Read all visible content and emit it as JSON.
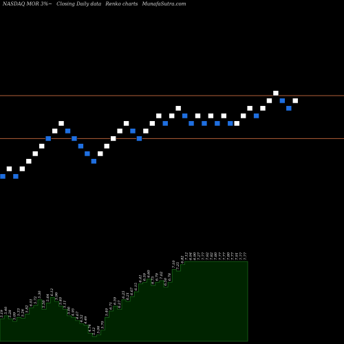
{
  "header": {
    "symbol": "NASDAQ MOR 3%~",
    "subtitle": "Closing Daily data",
    "chart_kind": "Renko charts",
    "site": "MunafaSutra.com"
  },
  "colors": {
    "background": "#000000",
    "up_brick": "#ffffff",
    "down_brick": "#1f6fe0",
    "level_line": "#b5603a",
    "volume_fill": "#002400",
    "volume_edge": "#1a6b1a",
    "text": "#d8d8d8"
  },
  "chart_data": [
    {
      "type": "line",
      "title": "",
      "price_range": [
        7.9,
        13.9
      ],
      "brick_size": 0.3,
      "horizontal_levels": [
        11.2,
        9.5
      ],
      "bricks": [
        {
          "x": 0,
          "y": 8.0,
          "dir": "down"
        },
        {
          "x": 1,
          "y": 8.3,
          "dir": "up"
        },
        {
          "x": 2,
          "y": 8.0,
          "dir": "down"
        },
        {
          "x": 3,
          "y": 8.3,
          "dir": "up"
        },
        {
          "x": 4,
          "y": 8.6,
          "dir": "up"
        },
        {
          "x": 5,
          "y": 8.9,
          "dir": "up"
        },
        {
          "x": 6,
          "y": 9.2,
          "dir": "up"
        },
        {
          "x": 7,
          "y": 9.5,
          "dir": "down"
        },
        {
          "x": 8,
          "y": 9.8,
          "dir": "up"
        },
        {
          "x": 9,
          "y": 10.1,
          "dir": "up"
        },
        {
          "x": 10,
          "y": 9.8,
          "dir": "down"
        },
        {
          "x": 11,
          "y": 9.5,
          "dir": "down"
        },
        {
          "x": 12,
          "y": 9.2,
          "dir": "down"
        },
        {
          "x": 13,
          "y": 8.9,
          "dir": "down"
        },
        {
          "x": 14,
          "y": 8.6,
          "dir": "down"
        },
        {
          "x": 15,
          "y": 8.9,
          "dir": "up"
        },
        {
          "x": 16,
          "y": 9.2,
          "dir": "up"
        },
        {
          "x": 17,
          "y": 9.5,
          "dir": "up"
        },
        {
          "x": 18,
          "y": 9.8,
          "dir": "up"
        },
        {
          "x": 19,
          "y": 10.1,
          "dir": "up"
        },
        {
          "x": 20,
          "y": 9.8,
          "dir": "down"
        },
        {
          "x": 21,
          "y": 9.5,
          "dir": "down"
        },
        {
          "x": 22,
          "y": 9.8,
          "dir": "up"
        },
        {
          "x": 23,
          "y": 10.1,
          "dir": "up"
        },
        {
          "x": 24,
          "y": 10.4,
          "dir": "up"
        },
        {
          "x": 25,
          "y": 10.1,
          "dir": "down"
        },
        {
          "x": 26,
          "y": 10.4,
          "dir": "up"
        },
        {
          "x": 27,
          "y": 10.7,
          "dir": "up"
        },
        {
          "x": 28,
          "y": 10.4,
          "dir": "down"
        },
        {
          "x": 29,
          "y": 10.1,
          "dir": "down"
        },
        {
          "x": 30,
          "y": 10.4,
          "dir": "up"
        },
        {
          "x": 31,
          "y": 10.1,
          "dir": "down"
        },
        {
          "x": 32,
          "y": 10.4,
          "dir": "up"
        },
        {
          "x": 33,
          "y": 10.1,
          "dir": "down"
        },
        {
          "x": 34,
          "y": 10.4,
          "dir": "up"
        },
        {
          "x": 35,
          "y": 10.1,
          "dir": "down"
        },
        {
          "x": 36,
          "y": 10.1,
          "dir": "up"
        },
        {
          "x": 37,
          "y": 10.4,
          "dir": "up"
        },
        {
          "x": 38,
          "y": 10.7,
          "dir": "up"
        },
        {
          "x": 39,
          "y": 10.4,
          "dir": "down"
        },
        {
          "x": 40,
          "y": 10.7,
          "dir": "up"
        },
        {
          "x": 41,
          "y": 11.0,
          "dir": "up"
        },
        {
          "x": 42,
          "y": 11.3,
          "dir": "up"
        },
        {
          "x": 43,
          "y": 11.0,
          "dir": "down"
        },
        {
          "x": 44,
          "y": 10.7,
          "dir": "down"
        },
        {
          "x": 45,
          "y": 11.0,
          "dir": "up"
        }
      ],
      "volume_labels": [
        "5.19",
        "5.40",
        "5.28",
        "5.09",
        "5.33",
        "5.26",
        "5.82",
        "6.01",
        "5.72",
        "5.30",
        "5.50",
        "5.64",
        "6.12",
        "5.96",
        "5.40",
        "5.11",
        "5.00",
        "4.95",
        "4.67",
        "4.52",
        "4.49",
        "4.74",
        "5.12",
        "5.06",
        "5.70",
        "5.40",
        "6.71",
        "6.59",
        "6.27",
        "6.25",
        "6.21",
        "6.67",
        "6.15",
        "6.41",
        "6.59",
        "6.60",
        "6.73",
        "6.79",
        "7.02",
        "6.50",
        "6.78",
        "7.10",
        "7.25",
        "6.82",
        "7.12",
        "6.94",
        "6.90",
        "7.27",
        "7.77",
        "7.92",
        "7.82",
        "7.80",
        "7.77",
        "7.77",
        "7.80",
        "7.77",
        "7.91",
        "7.77",
        "7.77"
      ],
      "volume_levels": [
        0.28,
        0.32,
        0.28,
        0.25,
        0.3,
        0.29,
        0.34,
        0.42,
        0.45,
        0.52,
        0.4,
        0.48,
        0.55,
        0.5,
        0.44,
        0.4,
        0.32,
        0.3,
        0.26,
        0.22,
        0.2,
        0.1,
        0.06,
        0.08,
        0.14,
        0.3,
        0.38,
        0.44,
        0.4,
        0.52,
        0.5,
        0.56,
        0.62,
        0.72,
        0.74,
        0.78,
        0.7,
        0.74,
        0.76,
        0.68,
        0.74,
        0.9,
        0.88,
        0.96,
        1.0,
        1.0,
        1.0,
        1.0,
        1.0,
        1.0,
        1.0,
        1.0,
        1.0,
        1.0,
        1.0,
        1.0,
        1.0,
        1.0,
        1.0
      ]
    }
  ]
}
